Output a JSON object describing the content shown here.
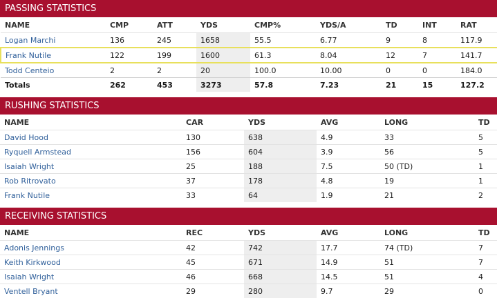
{
  "passing": {
    "title": "PASSING STATISTICS",
    "headers": [
      "NAME",
      "CMP",
      "ATT",
      "YDS",
      "CMP%",
      "YDS/A",
      "TD",
      "INT",
      "RAT"
    ],
    "rows": [
      [
        "Logan Marchi",
        "136",
        "245",
        "1658",
        "55.5",
        "6.77",
        "9",
        "8",
        "117.9"
      ],
      [
        "Frank Nutile",
        "122",
        "199",
        "1600",
        "61.3",
        "8.04",
        "12",
        "7",
        "141.7"
      ],
      [
        "Todd Centeio",
        "2",
        "2",
        "20",
        "100.0",
        "10.00",
        "0",
        "0",
        "184.0"
      ]
    ],
    "totals": [
      "Totals",
      "262",
      "453",
      "3273",
      "57.8",
      "7.23",
      "21",
      "15",
      "127.2"
    ]
  },
  "rushing": {
    "title": "RUSHING STATISTICS",
    "headers": [
      "NAME",
      "CAR",
      "YDS",
      "AVG",
      "LONG",
      "TD"
    ],
    "rows": [
      [
        "David Hood",
        "130",
        "638",
        "4.9",
        "33",
        "5"
      ],
      [
        "Ryquell Armstead",
        "156",
        "604",
        "3.9",
        "56",
        "5"
      ],
      [
        "Isaiah Wright",
        "25",
        "188",
        "7.5",
        "50 (TD)",
        "1"
      ],
      [
        "Rob Ritrovato",
        "37",
        "178",
        "4.8",
        "19",
        "1"
      ],
      [
        "Frank Nutile",
        "33",
        "64",
        "1.9",
        "21",
        "2"
      ]
    ]
  },
  "receiving": {
    "title": "RECEIVING STATISTICS",
    "headers": [
      "NAME",
      "REC",
      "YDS",
      "AVG",
      "LONG",
      "TD"
    ],
    "rows": [
      [
        "Adonis Jennings",
        "42",
        "742",
        "17.7",
        "74 (TD)",
        "7"
      ],
      [
        "Keith Kirkwood",
        "45",
        "671",
        "14.9",
        "51",
        "7"
      ],
      [
        "Isaiah Wright",
        "46",
        "668",
        "14.5",
        "51",
        "4"
      ],
      [
        "Ventell Bryant",
        "29",
        "280",
        "9.7",
        "29",
        "0"
      ]
    ]
  }
}
